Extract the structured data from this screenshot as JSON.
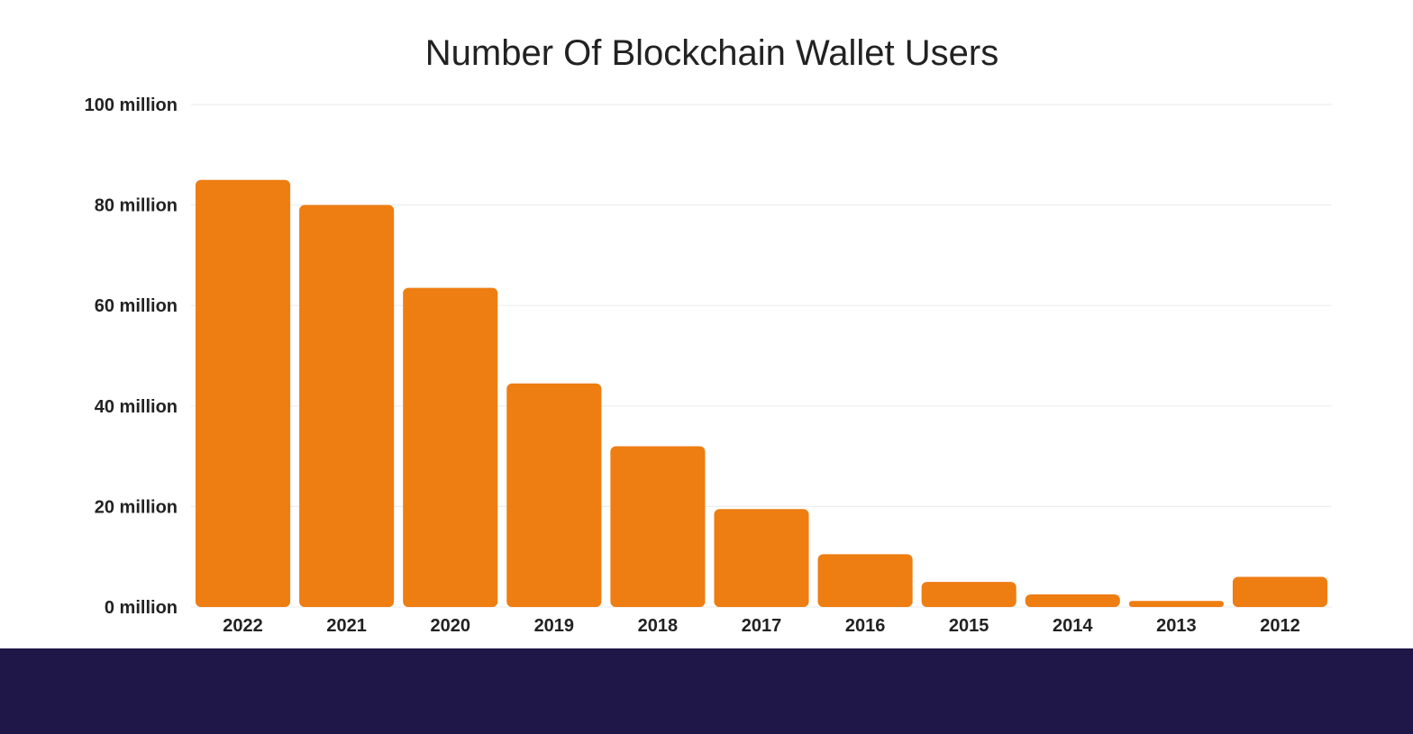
{
  "chart_data": {
    "type": "bar",
    "title": "Number Of Blockchain Wallet Users",
    "xlabel": "",
    "ylabel": "",
    "categories": [
      "2022",
      "2021",
      "2020",
      "2019",
      "2018",
      "2017",
      "2016",
      "2015",
      "2014",
      "2013",
      "2012"
    ],
    "values": [
      85,
      80,
      63.5,
      44.5,
      32,
      19.5,
      10.5,
      5,
      2.5,
      1.2,
      6
    ],
    "unit": "million",
    "ylim": [
      0,
      100
    ],
    "yticks": [
      0,
      20,
      40,
      60,
      80,
      100
    ],
    "ytick_labels": [
      "0 million",
      "20 million",
      "40 million",
      "60 million",
      "80 million",
      "100 million"
    ],
    "grid": true,
    "legend": "none",
    "bar_color": "#EE7D12"
  },
  "colors": {
    "footer_band": "#1E1747",
    "grid": "#EDEDED",
    "text": "#222222"
  }
}
